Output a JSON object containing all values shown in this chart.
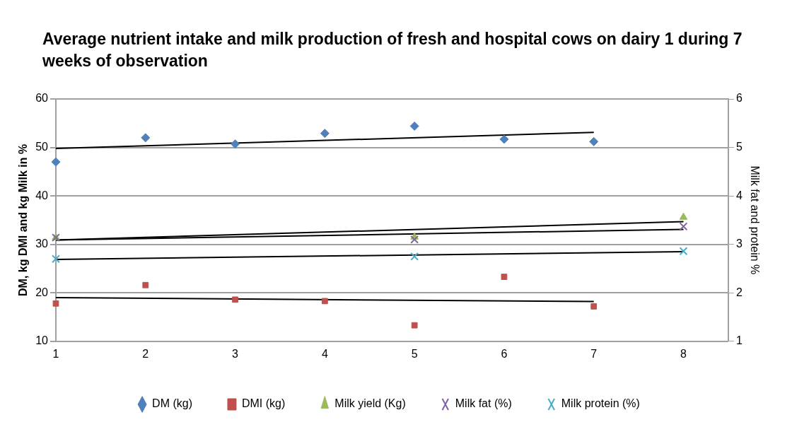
{
  "chart_data": {
    "type": "scatter",
    "title": "Average nutrient intake and milk production of  fresh and hospital cows on dairy 1 during 7 weeks of observation",
    "ylabel": "DM, kg DMI and kg Milk in %",
    "y2label": "Milk fat and protein %",
    "xlim": [
      1,
      8.5
    ],
    "xticks": [
      1,
      2,
      3,
      4,
      5,
      6,
      7,
      8
    ],
    "ylim": [
      10,
      60
    ],
    "yticks": [
      10,
      20,
      30,
      40,
      50,
      60
    ],
    "y2lim": [
      1,
      6
    ],
    "y2ticks": [
      1,
      2,
      3,
      4,
      5,
      6
    ],
    "grid": "y",
    "legend": "bottom",
    "series": [
      {
        "name": "DM (kg)",
        "color": "#4f81bd",
        "marker": "diamond",
        "x": [
          1,
          2,
          3,
          4,
          5,
          6,
          7
        ],
        "values": [
          47.0,
          52.0,
          50.7,
          52.9,
          54.4,
          51.7,
          51.2
        ]
      },
      {
        "name": "DMI (kg)",
        "color": "#c0504d",
        "marker": "square",
        "x": [
          1,
          2,
          3,
          4,
          5,
          6,
          7
        ],
        "values": [
          17.8,
          21.6,
          18.6,
          18.3,
          13.3,
          23.3,
          17.2
        ]
      },
      {
        "name": "Milk yield (Kg)",
        "color": "#9bbb59",
        "marker": "triangle",
        "x": [
          1,
          5,
          8
        ],
        "values": [
          31.4,
          31.5,
          35.6
        ]
      },
      {
        "name": "Milk fat (%)",
        "color": "#8064a2",
        "marker": "cross",
        "axis": "y2",
        "x": [
          1,
          5,
          8
        ],
        "values": [
          3.14,
          3.1,
          3.37
        ]
      },
      {
        "name": "Milk protein (%)",
        "color": "#4bacc6",
        "marker": "cross",
        "axis": "y2",
        "x": [
          1,
          5,
          8
        ],
        "values": [
          2.7,
          2.75,
          2.86
        ]
      },
      {
        "type": "line",
        "color": "#000000",
        "marker": "none",
        "x": [
          1,
          7
        ],
        "values": [
          49.8,
          53.1
        ]
      },
      {
        "type": "line",
        "color": "#000000",
        "marker": "none",
        "x": [
          1,
          7
        ],
        "values": [
          19.0,
          18.2
        ]
      },
      {
        "type": "line",
        "color": "#000000",
        "marker": "none",
        "x": [
          1,
          8
        ],
        "values": [
          30.9,
          34.7
        ]
      },
      {
        "type": "line",
        "color": "#000000",
        "marker": "none",
        "axis": "y2",
        "x": [
          1,
          8
        ],
        "values": [
          3.09,
          3.31
        ]
      },
      {
        "type": "line",
        "color": "#000000",
        "marker": "none",
        "axis": "y2",
        "x": [
          1,
          8
        ],
        "values": [
          2.69,
          2.85
        ]
      }
    ]
  }
}
